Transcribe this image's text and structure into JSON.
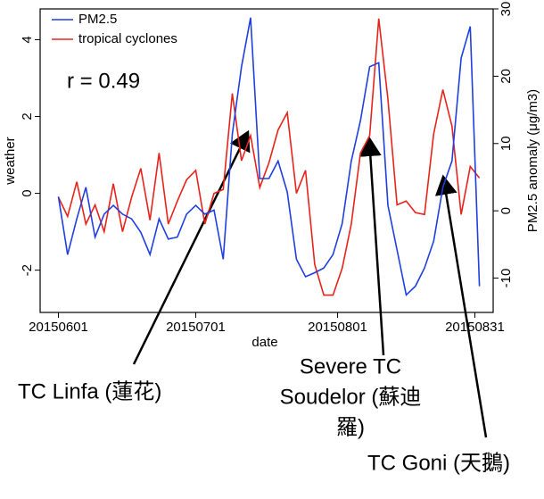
{
  "chart_data": {
    "type": "line",
    "xlabel": "date",
    "ylabel": "weather",
    "y2label": "PM2.5 anomaly (μg/m3)",
    "annotation": "r = 0.49",
    "callouts": [
      [
        "TC Linfa (蓮花)"
      ],
      [
        "Severe TC",
        "Soudelor (蘇迪",
        "羅)"
      ],
      [
        "TC Goni (天鵝)"
      ]
    ],
    "x": [
      "20150601",
      "20150603",
      "20150605",
      "20150607",
      "20150609",
      "20150611",
      "20150613",
      "20150615",
      "20150617",
      "20150619",
      "20150621",
      "20150623",
      "20150625",
      "20150627",
      "20150629",
      "20150701",
      "20150703",
      "20150705",
      "20150707",
      "20150709",
      "20150711",
      "20150713",
      "20150715",
      "20150717",
      "20150719",
      "20150721",
      "20150723",
      "20150725",
      "20150727",
      "20150729",
      "20150731",
      "20150802",
      "20150804",
      "20150806",
      "20150808",
      "20150810",
      "20150812",
      "20150814",
      "20150816",
      "20150818",
      "20150820",
      "20150822",
      "20150824",
      "20150826",
      "20150828",
      "20150830",
      "20150901"
    ],
    "xlim": [
      "20150528",
      "20150904"
    ],
    "xticks": [
      "20150601",
      "20150701",
      "20150801",
      "20150831"
    ],
    "ylim": [
      -3.1,
      4.8
    ],
    "yticks": [
      -2,
      0,
      2,
      4
    ],
    "y2lim": [
      -15.1,
      30
    ],
    "y2ticks": [
      -10,
      0,
      10,
      20,
      30
    ],
    "legend": "upper left",
    "series": [
      {
        "name": "PM2.5",
        "color": "#1f3fe0",
        "axis": "y2",
        "values": [
          2.1,
          -6.5,
          -1.2,
          3.5,
          -3.9,
          -0.5,
          0.8,
          -0.5,
          -1.2,
          -3.2,
          -6.5,
          -1.2,
          -4.2,
          -3.9,
          -0.5,
          0.8,
          -0.5,
          0.1,
          -7.2,
          11.4,
          21.4,
          28.7,
          4.8,
          4.8,
          7.4,
          2.8,
          -7.2,
          -9.8,
          -9.2,
          -8.5,
          -6.5,
          -1.9,
          7.4,
          13.4,
          21.4,
          22,
          0.8,
          -5.8,
          -12.5,
          -11.2,
          -8.5,
          -4.5,
          3.5,
          7.4,
          22.7,
          27.4,
          -11.2
        ]
      },
      {
        "name": "tropical cyclones",
        "color": "#e8231c",
        "values": [
          -0.1,
          -0.6,
          0.3,
          -0.8,
          -0.3,
          -1.0,
          0.25,
          -1.0,
          -0.1,
          0.65,
          -0.7,
          1.05,
          -0.8,
          -0.2,
          0.35,
          0.6,
          -0.8,
          0.0,
          0.1,
          2.6,
          0.85,
          1.5,
          0.15,
          0.8,
          1.65,
          2.1,
          0.0,
          0.6,
          -1.85,
          -2.65,
          -2.65,
          -1.95,
          -0.8,
          1.05,
          1.5,
          4.55,
          2.45,
          -0.3,
          -0.2,
          -0.5,
          -0.55,
          1.55,
          2.7,
          1.75,
          -0.55,
          0.7,
          0.4
        ]
      }
    ]
  }
}
